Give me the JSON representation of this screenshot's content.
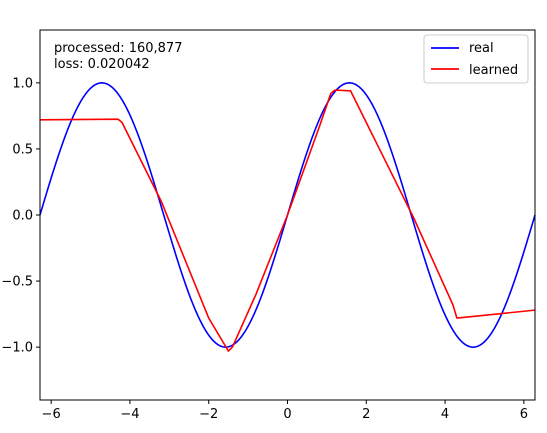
{
  "chart_data": {
    "type": "line",
    "xlim": [
      -6.283,
      6.283
    ],
    "ylim": [
      -1.4,
      1.4
    ],
    "grid": false,
    "legend_placement": "top-right",
    "x_ticks": [
      -6,
      -4,
      -2,
      0,
      2,
      4,
      6
    ],
    "x_tick_labels": [
      "−6",
      "−4",
      "−2",
      "0",
      "2",
      "4",
      "6"
    ],
    "y_ticks": [
      -1.0,
      -0.5,
      0.0,
      0.5,
      1.0
    ],
    "y_tick_labels": [
      "−1.0",
      "−0.5",
      "0.0",
      "0.5",
      "1.0"
    ],
    "annotations": [
      "processed: 160,877",
      "loss: 0.020042"
    ],
    "series": [
      {
        "name": "real",
        "color": "#0000ff",
        "function": "sin",
        "x_range": [
          -6.283,
          6.283
        ]
      },
      {
        "name": "learned",
        "color": "#ff0000",
        "x": [
          -6.283,
          -4.3,
          -4.2,
          -3.2,
          -2.0,
          -1.6,
          -1.5,
          -1.4,
          -0.8,
          0.0,
          0.8,
          1.1,
          1.2,
          1.6,
          2.0,
          3.2,
          4.2,
          4.3,
          6.283
        ],
        "y": [
          0.72,
          0.725,
          0.7,
          0.1,
          -0.78,
          -0.98,
          -1.03,
          -1.0,
          -0.6,
          0.0,
          0.66,
          0.92,
          0.945,
          0.94,
          0.7,
          -0.02,
          -0.68,
          -0.78,
          -0.72
        ]
      }
    ]
  }
}
